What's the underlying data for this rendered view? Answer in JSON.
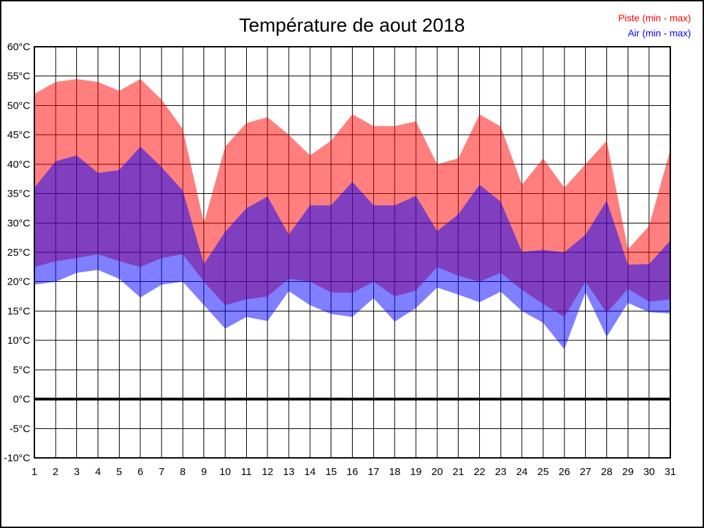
{
  "title": "Température de aout 2018",
  "legend": {
    "items": [
      {
        "label": "Piste (min - max)",
        "color": "#ff0000"
      },
      {
        "label": "Air (min - max)",
        "color": "#0000ff"
      }
    ]
  },
  "chart_data": {
    "type": "area",
    "title": "Température de aout 2018",
    "xlabel": "",
    "ylabel": "",
    "x": [
      1,
      2,
      3,
      4,
      5,
      6,
      7,
      8,
      9,
      10,
      11,
      12,
      13,
      14,
      15,
      16,
      17,
      18,
      19,
      20,
      21,
      22,
      23,
      24,
      25,
      26,
      27,
      28,
      29,
      30,
      31
    ],
    "ylim": [
      -10,
      60
    ],
    "y_tick_step": 5,
    "y_tick_suffix": "°C",
    "grid": true,
    "zero_line_value": 0,
    "legend_position": "top-right",
    "series": [
      {
        "name": "Piste (min - max)",
        "color": "#ff0000",
        "fill_opacity": 0.5,
        "max": [
          52,
          54,
          54.5,
          54,
          52.5,
          54.5,
          51,
          46,
          30,
          43,
          47,
          48,
          45,
          41.5,
          44,
          48.5,
          46.5,
          46.5,
          47.3,
          40,
          41,
          48.5,
          46.4,
          36.5,
          41,
          36,
          40,
          44,
          25.5,
          29.5,
          42.5
        ],
        "min": [
          22.5,
          23.5,
          24,
          24.7,
          23.5,
          22.5,
          24,
          24.7,
          20,
          16,
          17,
          17.5,
          20.5,
          20,
          18.2,
          18.1,
          20,
          17.5,
          18.5,
          22.5,
          21,
          20,
          21.5,
          18.6,
          16.2,
          14,
          20,
          14.7,
          18.8,
          16.6,
          17
        ]
      },
      {
        "name": "Air (min - max)",
        "color": "#0000ff",
        "fill_opacity": 0.5,
        "max": [
          36,
          40.5,
          41.5,
          38.5,
          39,
          43,
          39.5,
          35.5,
          23,
          28.5,
          32.5,
          34.5,
          28,
          33,
          33,
          37,
          33,
          33,
          34.6,
          28.6,
          31.5,
          36.5,
          33.6,
          25.1,
          25.4,
          25,
          28,
          33.8,
          22.9,
          23,
          27
        ],
        "min": [
          19.5,
          20,
          21.5,
          22,
          20.5,
          17.3,
          19.5,
          20,
          16,
          12,
          14,
          13.3,
          18.4,
          16,
          14.5,
          14,
          17.2,
          13.2,
          15.5,
          19,
          17.8,
          16.5,
          18.3,
          15,
          13,
          8.5,
          18.2,
          10.6,
          16.4,
          14.8,
          14.6
        ]
      }
    ]
  }
}
